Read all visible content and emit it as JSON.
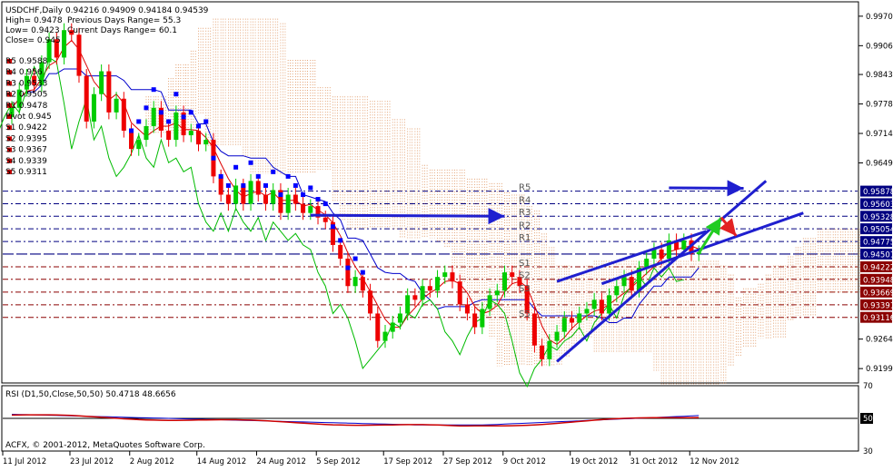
{
  "header": {
    "symbol_line": "USDCHF,Daily  0.94216 0.94909 0.94184 0.94539",
    "high": "High= 0.9478",
    "prev_range": "Previous Days Range= 55.3",
    "low": "Low= 0.9423",
    "curr_range": "Current Days Range= 60.1",
    "close": "Close= 0.945"
  },
  "pivot_legend": [
    "R5 0.9588",
    "R4 0.956",
    "R3 0.9533",
    "R2 0.9505",
    "R1 0.9478",
    "Pivot 0.945",
    "S1 0.9422",
    "S2 0.9395",
    "S3 0.9367",
    "S4 0.9339",
    "S5 0.9311"
  ],
  "rsi_title": "RSI (D1,50,Close,50,50) 50.4718 48.6656",
  "copyright": "ACFX, © 2001-2012, MetaQuotes Software Corp.",
  "colors": {
    "bull": "#00cc00",
    "bear": "#ee0000",
    "arrow_blue": "#1f1fcf",
    "arrow_green": "#22cc22",
    "arrow_red": "#e22222",
    "grid_dash": "#000080",
    "level_red": "#8b0000",
    "level_highlight": "#0000aa",
    "kumo": "#d2691e"
  },
  "chart_data": {
    "type": "candlestick",
    "instrument": "USDCHF",
    "timeframe": "Daily",
    "ylim": [
      0.917,
      1.0
    ],
    "y_ticks": [
      0.99705,
      0.9906,
      0.9843,
      0.97785,
      0.9714,
      0.96495,
      0.9264,
      0.91995
    ],
    "y_tick_labels": [
      "0.99705",
      "0.99060",
      "0.98430",
      "0.97785",
      "0.97140",
      "0.96495",
      "0.92640",
      "0.91995"
    ],
    "x_tick_labels": [
      "11 Jul 2012",
      "23 Jul 2012",
      "2 Aug 2012",
      "14 Aug 2012",
      "24 Aug 2012",
      "5 Sep 2012",
      "17 Sep 2012",
      "27 Sep 2012",
      "9 Oct 2012",
      "19 Oct 2012",
      "31 Oct 2012",
      "12 Nov 2012"
    ],
    "x_tick_bars": [
      0,
      9,
      17,
      26,
      34,
      42,
      51,
      59,
      67,
      76,
      84,
      92
    ],
    "level_labels": [
      {
        "text": "0.95878",
        "value": 0.95878,
        "highlight": true
      },
      {
        "text": "0.95603",
        "value": 0.95603,
        "highlight": true
      },
      {
        "text": "0.95328",
        "value": 0.95328,
        "highlight": true
      },
      {
        "text": "0.95054",
        "value": 0.95054,
        "highlight": true
      },
      {
        "text": "0.94775",
        "value": 0.94775,
        "highlight": true
      },
      {
        "text": "0.94501",
        "value": 0.94501,
        "highlight": true
      },
      {
        "text": "0.94222",
        "value": 0.94222,
        "highlight": false
      },
      {
        "text": "0.93948",
        "value": 0.93948,
        "highlight": false
      },
      {
        "text": "0.93669",
        "value": 0.93669,
        "highlight": false
      },
      {
        "text": "0.93391",
        "value": 0.93391,
        "highlight": false
      },
      {
        "text": "0.93116",
        "value": 0.93116,
        "highlight": false
      }
    ],
    "pivot_levels": [
      {
        "label": "R5",
        "value": 0.9588,
        "kind": "resistance"
      },
      {
        "label": "R4",
        "value": 0.956,
        "kind": "resistance"
      },
      {
        "label": "R3",
        "value": 0.9533,
        "kind": "resistance"
      },
      {
        "label": "R2",
        "value": 0.9505,
        "kind": "resistance"
      },
      {
        "label": "R1",
        "value": 0.9478,
        "kind": "resistance"
      },
      {
        "label": "",
        "value": 0.945,
        "kind": "pivot"
      },
      {
        "label": "S1",
        "value": 0.9422,
        "kind": "support"
      },
      {
        "label": "S2",
        "value": 0.9395,
        "kind": "support"
      },
      {
        "label": "S3",
        "value": 0.9367,
        "kind": "support"
      },
      {
        "label": "",
        "value": 0.9339,
        "kind": "support"
      },
      {
        "label": "S5",
        "value": 0.9311,
        "kind": "support"
      }
    ],
    "closes": [
      0.977,
      0.981,
      0.984,
      0.982,
      0.987,
      0.992,
      0.988,
      0.994,
      0.993,
      0.984,
      0.974,
      0.98,
      0.985,
      0.976,
      0.979,
      0.972,
      0.968,
      0.97,
      0.973,
      0.977,
      0.972,
      0.97,
      0.976,
      0.971,
      0.972,
      0.969,
      0.97,
      0.962,
      0.958,
      0.956,
      0.96,
      0.956,
      0.961,
      0.958,
      0.956,
      0.959,
      0.954,
      0.958,
      0.956,
      0.954,
      0.9555,
      0.953,
      0.952,
      0.947,
      0.944,
      0.938,
      0.94,
      0.937,
      0.932,
      0.926,
      0.928,
      0.93,
      0.932,
      0.936,
      0.935,
      0.938,
      0.937,
      0.94,
      0.941,
      0.939,
      0.934,
      0.932,
      0.929,
      0.933,
      0.936,
      0.937,
      0.941,
      0.94,
      0.938,
      0.932,
      0.925,
      0.922,
      0.926,
      0.928,
      0.931,
      0.93,
      0.932,
      0.933,
      0.935,
      0.932,
      0.936,
      0.938,
      0.94,
      0.937,
      0.942,
      0.944,
      0.946,
      0.944,
      0.948,
      0.946,
      0.948,
      0.945,
      0.9454
    ],
    "candles_drawn": 93,
    "rsi": {
      "title": "RSI (D1,50,Close,50,50) 50.4718 48.6656",
      "period": 50,
      "levels": [
        50
      ],
      "ylim": [
        30,
        70
      ],
      "y_tick_labels": [
        "70",
        "50",
        "30"
      ],
      "value": 50.4718,
      "signal": 48.6656
    },
    "annotations": [
      {
        "type": "arrow",
        "color": "blue",
        "from": [
          40,
          0.9535
        ],
        "to": [
          66,
          0.9533
        ]
      },
      {
        "type": "arrow",
        "color": "blue",
        "from": [
          88,
          0.9595
        ],
        "to": [
          98,
          0.9594
        ]
      },
      {
        "type": "trendline",
        "color": "blue",
        "from": [
          73,
          0.9215
        ],
        "to": [
          101,
          0.961
        ]
      },
      {
        "type": "trendline",
        "color": "blue",
        "from": [
          79,
          0.9385
        ],
        "to": [
          106,
          0.954
        ]
      },
      {
        "type": "trendline",
        "color": "blue",
        "from": [
          73,
          0.939
        ],
        "to": [
          93,
          0.95
        ]
      },
      {
        "type": "arrow",
        "color": "green",
        "from": [
          92,
          0.9452
        ],
        "to": [
          95,
          0.953
        ]
      },
      {
        "type": "arrow",
        "color": "red",
        "from": [
          95,
          0.953
        ],
        "to": [
          97,
          0.949
        ]
      }
    ]
  }
}
